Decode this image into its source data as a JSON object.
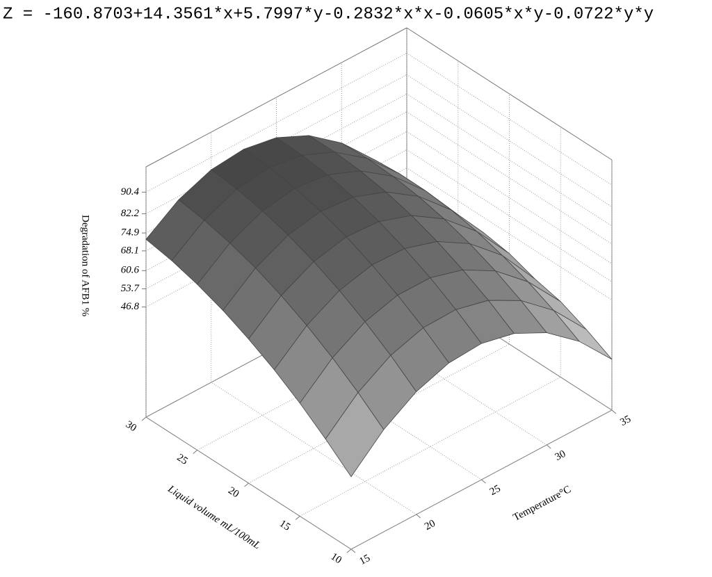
{
  "chart_data": {
    "type": "surface",
    "title": "Z = -160.8703+14.3561*x+5.7997*y-0.2832*x*x-0.0605*x*y-0.0722*y*y",
    "xlabel": "Temperature°C",
    "ylabel": "Liquid volume mL/100mL",
    "zlabel": "Degradation of AFB1 %",
    "x": [
      15,
      17.5,
      20,
      22.5,
      25,
      27.5,
      30,
      32.5,
      35
    ],
    "y": [
      10,
      12.5,
      15,
      17.5,
      20,
      22.5,
      25,
      27.5,
      30
    ],
    "z": [
      [
        32.5,
        43.8,
        51.6,
        55.9,
        56.7,
        53.9,
        47.6,
        37.7,
        24.3
      ],
      [
        40.6,
        51.6,
        59.1,
        63.0,
        63.3,
        60.2,
        53.5,
        43.2,
        29.4
      ],
      [
        47.9,
        58.5,
        65.6,
        69.1,
        69.1,
        65.5,
        58.5,
        47.8,
        33.7
      ],
      [
        54.3,
        64.5,
        71.2,
        74.3,
        73.9,
        70.0,
        62.6,
        51.5,
        36.0
      ],
      [
        59.7,
        69.6,
        75.9,
        78.7,
        77.9,
        73.6,
        65.7,
        54.4,
        39.4
      ],
      [
        64.3,
        73.8,
        79.7,
        82.1,
        80.9,
        76.3,
        68.0,
        56.3,
        41.0
      ],
      [
        67.9,
        77.0,
        82.6,
        84.6,
        83.1,
        78.0,
        69.4,
        57.3,
        41.6
      ],
      [
        70.7,
        79.4,
        84.6,
        86.2,
        84.3,
        78.9,
        69.9,
        57.4,
        41.3
      ],
      [
        72.5,
        80.9,
        85.7,
        86.9,
        84.7,
        78.9,
        69.5,
        56.6,
        40.2
      ]
    ],
    "xlim": [
      15,
      35
    ],
    "ylim": [
      10,
      30
    ],
    "zlim": [
      5,
      100
    ],
    "xticks": [
      15,
      20,
      25,
      30,
      35
    ],
    "yticks": [
      10,
      15,
      20,
      25,
      30
    ],
    "zticks": [
      46.8,
      53.7,
      60.6,
      68.1,
      74.9,
      82.2,
      90.4
    ],
    "grid": true,
    "color": "#444444"
  }
}
